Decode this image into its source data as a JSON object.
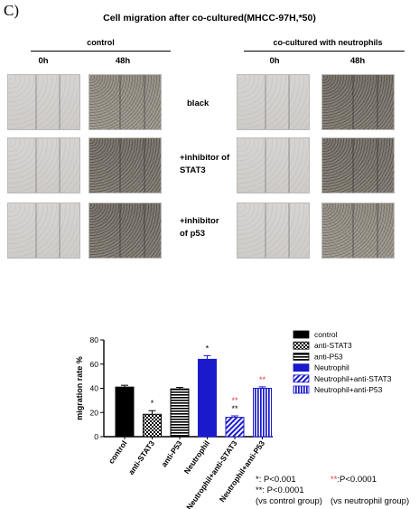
{
  "panel_letter": "C)",
  "figure_title": "Cell migration after co-cultured(MHCC-97H,*50)",
  "groups": {
    "control": "control",
    "cocultured": "co-cultured with neutrophils"
  },
  "time_points": {
    "t0": "0h",
    "t48": "48h"
  },
  "row_labels": {
    "row1": "black",
    "row2a": "+inhibitor of",
    "row2b": "STAT3",
    "row3a": "+inhibitor",
    "row3b": "of p53"
  },
  "chart_data": {
    "type": "bar",
    "ylabel": "migration rate %",
    "ylim": [
      0,
      80
    ],
    "yticks": [
      0,
      20,
      40,
      60,
      80
    ],
    "categories": [
      "control",
      "anti-STAT3",
      "anti-P53",
      "Neutrophil",
      "Neutrophil+anti-STAT3",
      "Neutrophil+anti-P53"
    ],
    "values": [
      41,
      18.5,
      39.5,
      64,
      16,
      40
    ],
    "errors": [
      1.5,
      3,
      1.2,
      3,
      1.2,
      1.2
    ],
    "fill_styles": [
      "solid-black",
      "checker-black",
      "hstripe-black",
      "solid-blue",
      "diag-blue",
      "vstripe-blue"
    ],
    "annotations": [
      {
        "category": "anti-STAT3",
        "lines": [
          {
            "text": "*",
            "color": "#000000"
          }
        ]
      },
      {
        "category": "Neutrophil",
        "lines": [
          {
            "text": "*",
            "color": "#000000"
          }
        ]
      },
      {
        "category": "Neutrophil+anti-STAT3",
        "lines": [
          {
            "text": "**",
            "color": "#e8333a"
          },
          {
            "text": "**",
            "color": "#000000"
          }
        ]
      },
      {
        "category": "Neutrophil+anti-P53",
        "lines": [
          {
            "text": "**",
            "color": "#e8333a"
          }
        ]
      }
    ],
    "legend": [
      "control",
      "anti-STAT3",
      "anti-P53",
      "Neutrophil",
      "Neutrophil+anti-STAT3",
      "Neutrophil+anti-P53"
    ],
    "legend_position": "right",
    "colors": {
      "black": "#000000",
      "blue": "#1a1acc",
      "red": "#e8333a"
    }
  },
  "pvalue_notes": {
    "single_star": "*: P<0.001",
    "double_star": "**: P<0.0001",
    "vs_control": "(vs control group)",
    "red_marker": "**",
    "red_text": ":P<0.0001",
    "vs_neutrophil": "(vs neutrophil group)"
  }
}
